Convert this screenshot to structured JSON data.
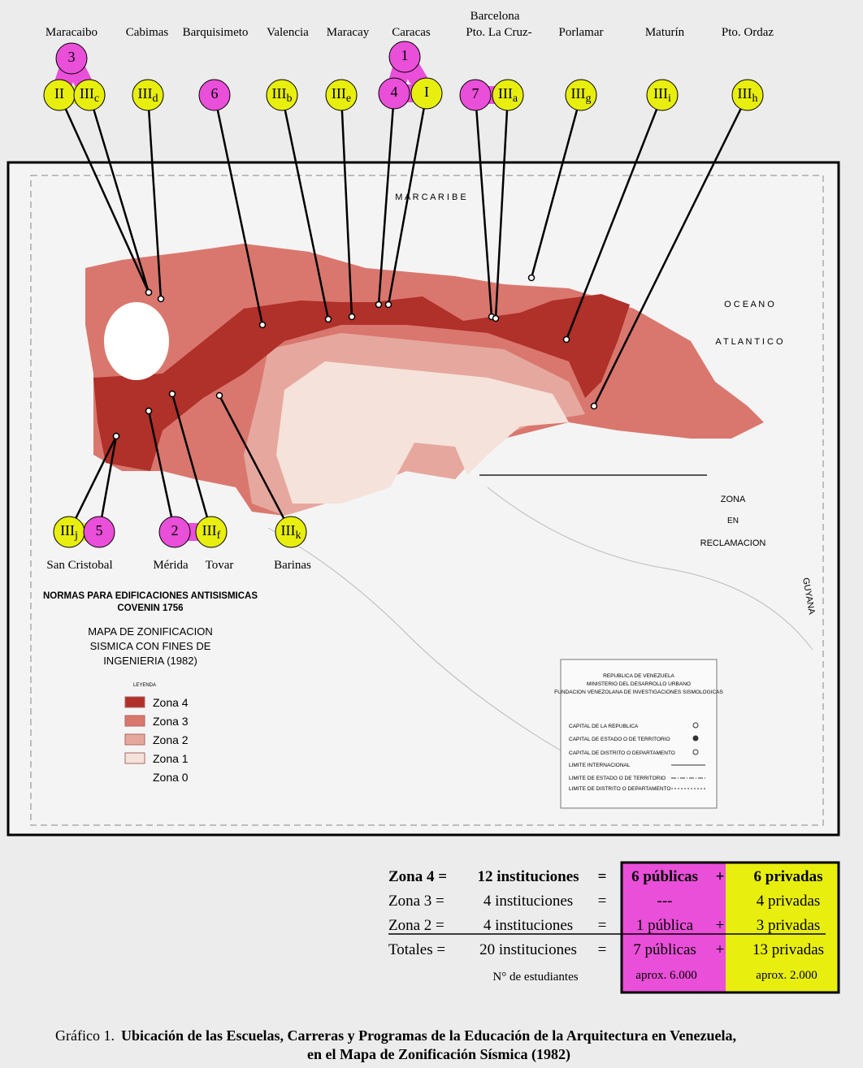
{
  "cities_top": [
    "Maracaibo",
    "Cabimas",
    "Barquisimeto",
    "Valencia",
    "Maracay",
    "Caracas",
    "Barcelona",
    "Pto. La Cruz-",
    "Porlamar",
    "Maturín",
    "Pto. Ordaz"
  ],
  "cities_bottom": [
    "San Cristobal",
    "Mérida",
    "Tovar",
    "Barinas"
  ],
  "markers": [
    {
      "main": "3"
    },
    {
      "main": "II"
    },
    {
      "main": "III",
      "sub": "c"
    },
    {
      "main": "III",
      "sub": "d"
    },
    {
      "main": "6"
    },
    {
      "main": "III",
      "sub": "b"
    },
    {
      "main": "III",
      "sub": "e"
    },
    {
      "main": "1"
    },
    {
      "main": "4"
    },
    {
      "main": "I"
    },
    {
      "main": "7"
    },
    {
      "main": "III",
      "sub": "a"
    },
    {
      "main": "III",
      "sub": "g"
    },
    {
      "main": "III",
      "sub": "i"
    },
    {
      "main": "III",
      "sub": "h"
    },
    {
      "main": "III",
      "sub": "j"
    },
    {
      "main": "5"
    },
    {
      "main": "2"
    },
    {
      "main": "III",
      "sub": "f"
    },
    {
      "main": "III",
      "sub": "k"
    }
  ],
  "map_labels": {
    "sea": "M A R     C A R I B E",
    "ocean1": "O C E A N O",
    "ocean2": "A T L A N T I C O",
    "zona": [
      "ZONA",
      "EN",
      "RECLAMACION"
    ],
    "guyana": "GUYANA"
  },
  "legend": {
    "norms": [
      "NORMAS PARA EDIFICACIONES ANTISISMICAS",
      "COVENIN 1756"
    ],
    "title": [
      "MAPA DE ZONIFICACION",
      "SISMICA CON FINES DE",
      "INGENIERIA  (1982)"
    ],
    "header": "LEYENDA",
    "items": [
      "Zona  4",
      "Zona  3",
      "Zona  2",
      "Zona  1",
      "Zona  0"
    ]
  },
  "inset": {
    "header": [
      "REPUBLICA DE VENEZUELA",
      "MINISTERIO DEL DESARROLLO URBANO",
      "FUNDACION VENEZOLANA DE INVESTIGACIONES SISMOLOGICAS"
    ],
    "items": [
      "CAPITAL DE LA REPUBLICA",
      "CAPITAL DE ESTADO O DE TERRITORIO",
      "CAPITAL DE DISTRITO O DEPARTAMENTO",
      "LIMITE INTERNACIONAL",
      "LIMITE DE ESTADO O DE TERRITORIO",
      "LIMITE DE DISTRITO O DEPARTAMENTO"
    ]
  },
  "table": {
    "rows": [
      {
        "zone": "Zona  4 =",
        "count": "12 instituciones",
        "eq": "=",
        "pub": "6 públicas",
        "plus": "+",
        "priv": "6 privadas"
      },
      {
        "zone": "Zona  3  =",
        "count": "4 instituciones",
        "eq": "=",
        "pub": "---",
        "priv": "4 privadas"
      },
      {
        "zone": "Zona  2  =",
        "count": "4 instituciones",
        "eq": "=",
        "pub": "1 pública",
        "plus": "+",
        "priv": "3 privadas"
      },
      {
        "zone": "Totales  =",
        "count": "20 instituciones",
        "eq": "=",
        "pub": "7 públicas",
        "plus": "+",
        "priv": "13 privadas"
      }
    ],
    "students": {
      "label": "N° de estudiantes",
      "pub": "aprox. 6.000",
      "priv": "aprox. 2.000"
    }
  },
  "caption": {
    "prefix": "Gráfico 1.",
    "line1": "Ubicación de las Escuelas, Carreras y Programas de la Educación de la Arquitectura en Venezuela,",
    "line2": "en el Mapa de Zonificación Sísmica (1982)"
  }
}
